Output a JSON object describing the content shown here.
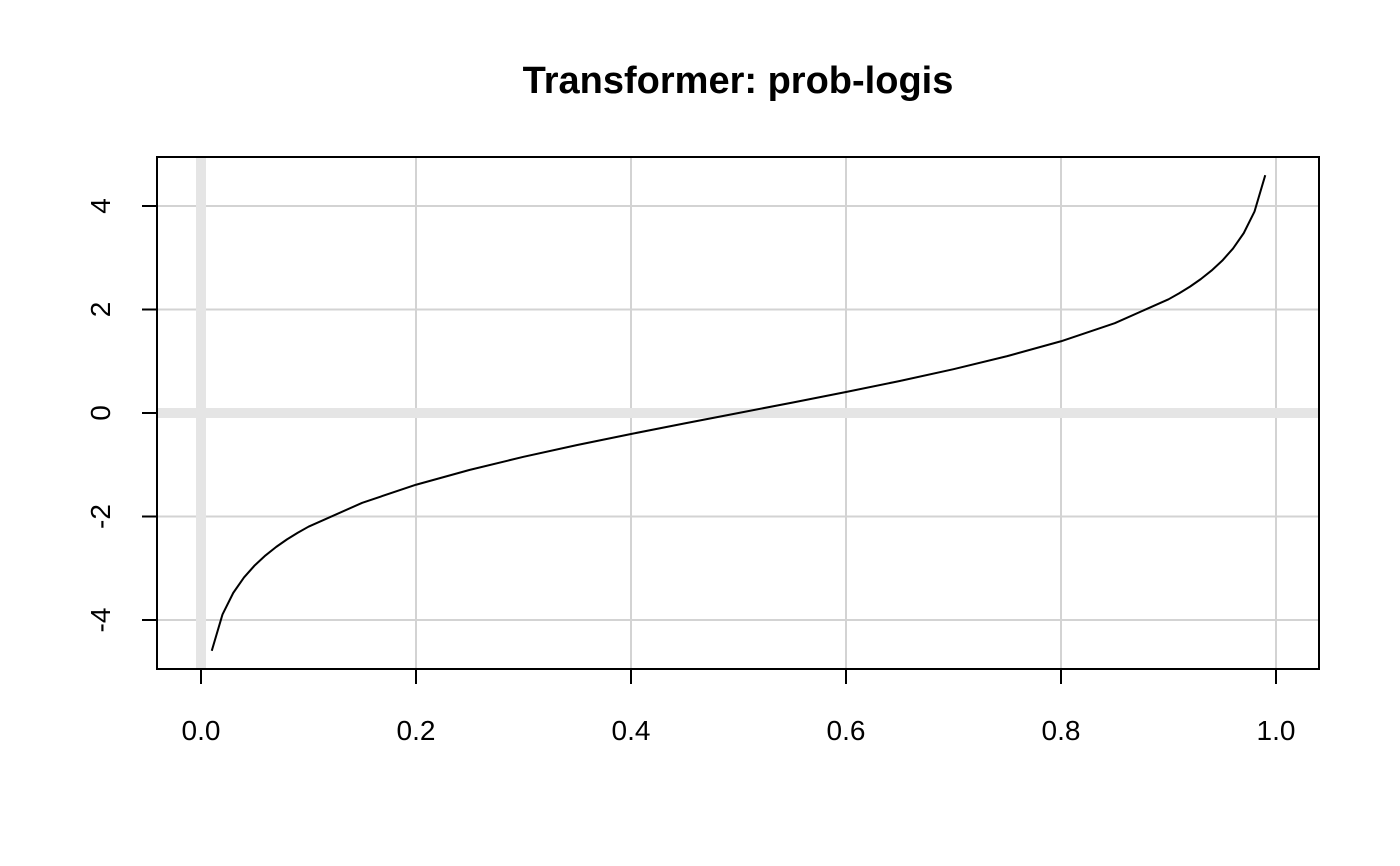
{
  "chart_data": {
    "type": "line",
    "title": "Transformer: prob-logis",
    "xlabel": "",
    "ylabel": "",
    "xlim": [
      0.0,
      1.0
    ],
    "ylim": [
      -4.6,
      4.6
    ],
    "x_ticks": [
      {
        "value": 0.0,
        "label": "0.0"
      },
      {
        "value": 0.2,
        "label": "0.2"
      },
      {
        "value": 0.4,
        "label": "0.4"
      },
      {
        "value": 0.6,
        "label": "0.6"
      },
      {
        "value": 0.8,
        "label": "0.8"
      },
      {
        "value": 1.0,
        "label": "1.0"
      }
    ],
    "y_ticks": [
      {
        "value": -4,
        "label": "-4"
      },
      {
        "value": -2,
        "label": "-2"
      },
      {
        "value": 0,
        "label": "0"
      },
      {
        "value": 2,
        "label": "2"
      },
      {
        "value": 4,
        "label": "4"
      }
    ],
    "grid": true,
    "reference_lines": {
      "x": 0,
      "y": 0
    },
    "colors": {
      "line": "#000000",
      "grid": "#d3d3d3",
      "reference": "#e5e5e5",
      "axis": "#000000"
    },
    "series": [
      {
        "x": [
          0.01,
          0.02,
          0.03,
          0.04,
          0.05,
          0.06,
          0.07,
          0.08,
          0.09,
          0.1,
          0.15,
          0.2,
          0.25,
          0.3,
          0.35,
          0.4,
          0.45,
          0.5,
          0.55,
          0.6,
          0.65,
          0.7,
          0.75,
          0.8,
          0.85,
          0.9,
          0.91,
          0.92,
          0.93,
          0.94,
          0.95,
          0.96,
          0.97,
          0.98,
          0.99
        ],
        "y": [
          -4.595,
          -3.892,
          -3.476,
          -3.178,
          -2.944,
          -2.752,
          -2.587,
          -2.442,
          -2.314,
          -2.197,
          -1.735,
          -1.386,
          -1.099,
          -0.847,
          -0.619,
          -0.405,
          -0.201,
          0.0,
          0.201,
          0.405,
          0.619,
          0.847,
          1.099,
          1.386,
          1.735,
          2.197,
          2.314,
          2.442,
          2.587,
          2.752,
          2.944,
          3.178,
          3.476,
          3.892,
          4.595
        ]
      }
    ]
  }
}
